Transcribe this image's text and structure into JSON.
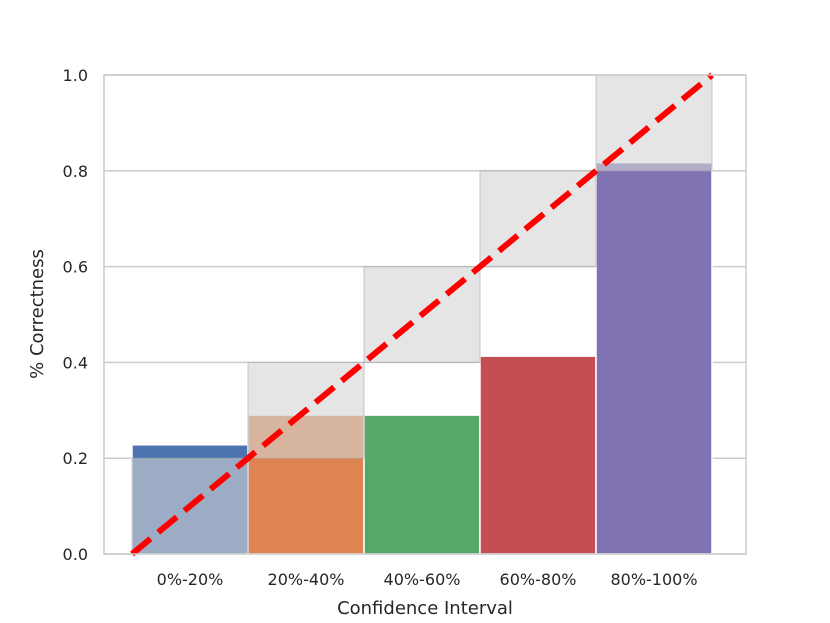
{
  "chart_data": {
    "type": "bar",
    "xlabel": "Confidence Interval",
    "ylabel": "% Correctness",
    "ylim": [
      0,
      1
    ],
    "yticks": [
      "0.0",
      "0.2",
      "0.4",
      "0.6",
      "0.8",
      "1.0"
    ],
    "grid": true,
    "categories": [
      "0%-20%",
      "20%-40%",
      "40%-60%",
      "60%-80%",
      "80%-100%"
    ],
    "values": [
      0.228,
      0.29,
      0.29,
      0.413,
      0.817
    ],
    "bar_colors": [
      "#4c72b0",
      "#dd8452",
      "#55a868",
      "#c44e52",
      "#8172b3"
    ],
    "gap_bands": [
      {
        "low": 0.0,
        "high": 0.2
      },
      {
        "low": 0.2,
        "high": 0.4
      },
      {
        "low": 0.4,
        "high": 0.6
      },
      {
        "low": 0.6,
        "high": 0.8
      },
      {
        "low": 0.8,
        "high": 1.0
      }
    ],
    "gap_color": "#d3d3d3",
    "ideal_line": {
      "from": [
        0,
        0
      ],
      "to": [
        1,
        1
      ],
      "color": "#ff0000",
      "style": "dashed"
    }
  }
}
